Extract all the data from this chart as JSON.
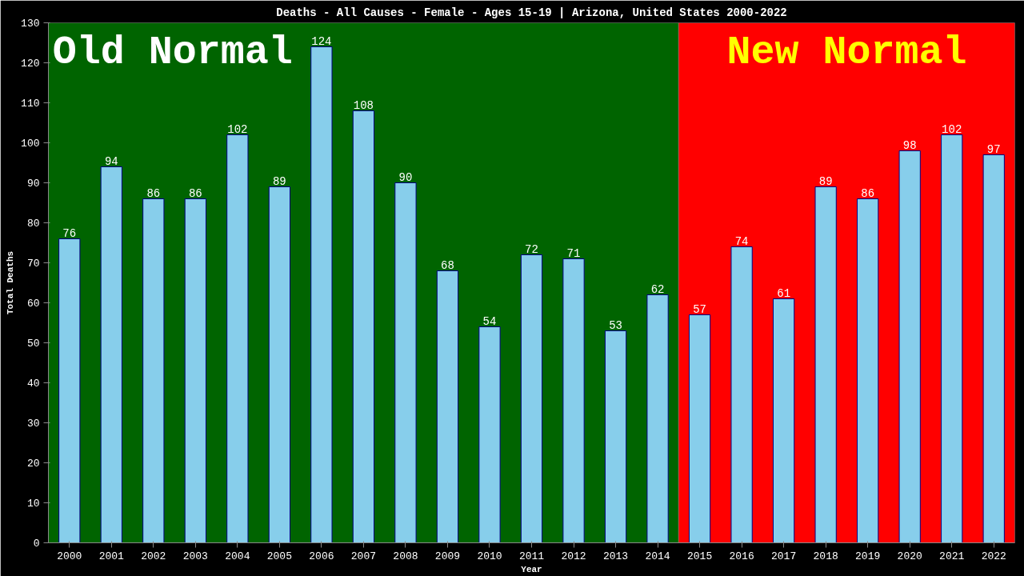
{
  "chart_data": {
    "type": "bar",
    "title": "Deaths - All Causes - Female - Ages 15-19 | Arizona, United States 2000-2022",
    "xlabel": "Year",
    "ylabel": "Total Deaths",
    "categories": [
      "2000",
      "2001",
      "2002",
      "2003",
      "2004",
      "2005",
      "2006",
      "2007",
      "2008",
      "2009",
      "2010",
      "2011",
      "2012",
      "2013",
      "2014",
      "2015",
      "2016",
      "2017",
      "2018",
      "2019",
      "2020",
      "2021",
      "2022"
    ],
    "values": [
      76,
      94,
      86,
      86,
      102,
      89,
      124,
      108,
      90,
      68,
      54,
      72,
      71,
      53,
      62,
      57,
      74,
      61,
      89,
      86,
      98,
      102,
      97
    ],
    "color": "#87ceeb",
    "ylim": [
      0,
      130
    ],
    "yticks": [
      0,
      10,
      20,
      30,
      40,
      50,
      60,
      70,
      80,
      90,
      100,
      110,
      120,
      130
    ],
    "grid": false,
    "data_labels": true,
    "bands": [
      {
        "axis": "x",
        "from": "2000",
        "to": "2014",
        "label": "Old Normal",
        "color": "#006400"
      },
      {
        "axis": "x",
        "from": "2015",
        "to": "2022",
        "label": "New Normal",
        "color": "#ff0000"
      }
    ]
  }
}
